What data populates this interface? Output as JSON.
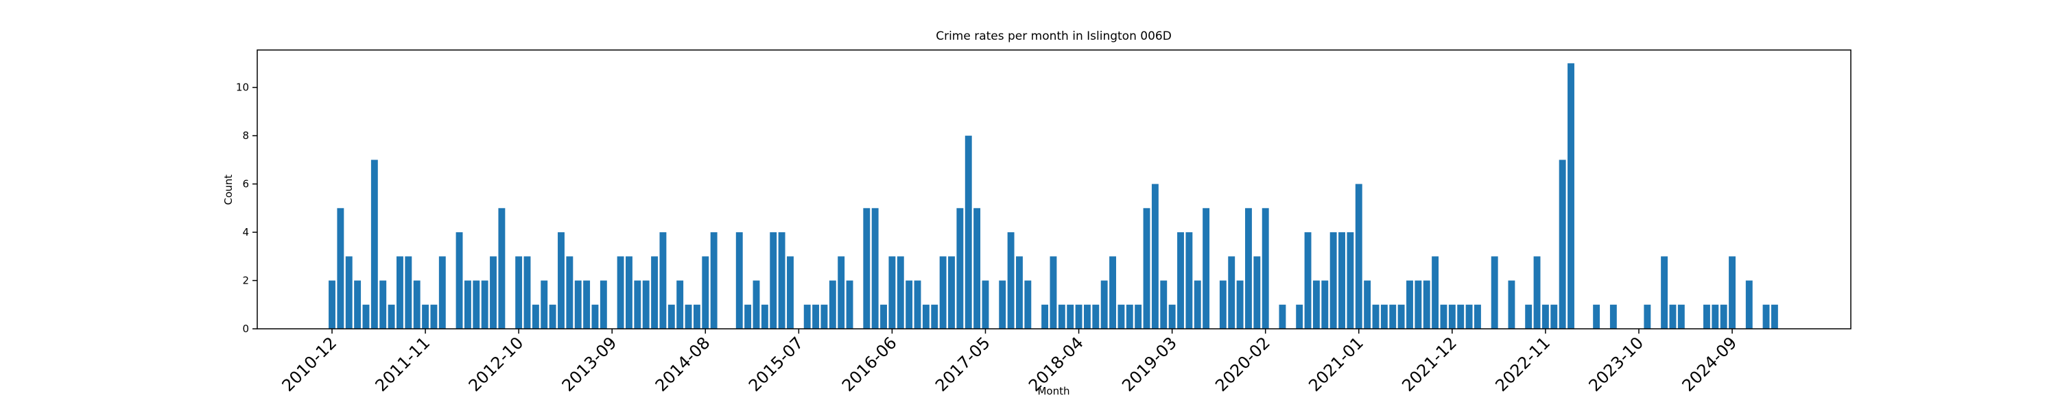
{
  "chart_data": {
    "type": "bar",
    "title": "Crime rates per month in Islington 006D",
    "x_label": "Month",
    "y_label": "Count",
    "color": "#1f77b4",
    "categories": [
      "2010-12",
      null,
      null,
      null,
      null,
      null,
      null,
      null,
      null,
      null,
      null,
      "2011-11",
      null,
      null,
      null,
      null,
      null,
      null,
      null,
      null,
      null,
      null,
      "2012-10",
      null,
      null,
      null,
      null,
      null,
      null,
      null,
      null,
      null,
      null,
      "2013-09",
      null,
      null,
      null,
      null,
      null,
      null,
      null,
      null,
      null,
      null,
      "2014-08",
      null,
      null,
      null,
      null,
      null,
      null,
      null,
      null,
      null,
      null,
      "2015-07",
      null,
      null,
      null,
      null,
      null,
      null,
      null,
      null,
      null,
      null,
      "2016-06",
      null,
      null,
      null,
      null,
      null,
      null,
      null,
      null,
      null,
      null,
      "2017-05",
      null,
      null,
      null,
      null,
      null,
      null,
      null,
      null,
      null,
      null,
      "2018-04",
      null,
      null,
      null,
      null,
      null,
      null,
      null,
      null,
      null,
      null,
      "2019-03",
      null,
      null,
      null,
      null,
      null,
      null,
      null,
      null,
      null,
      null,
      "2020-02",
      null,
      null,
      null,
      null,
      null,
      null,
      null,
      null,
      null,
      null,
      "2021-01",
      null,
      null,
      null,
      null,
      null,
      null,
      null,
      null,
      null,
      null,
      "2021-12",
      null,
      null,
      null,
      null,
      null,
      null,
      null,
      null,
      null,
      null,
      "2022-11",
      null,
      null,
      null,
      null,
      null,
      null,
      null,
      null,
      null,
      null,
      "2023-10",
      null,
      null,
      null,
      null,
      null,
      null,
      null,
      null,
      null,
      null,
      "2024-09",
      null,
      null,
      null,
      null,
      null
    ],
    "values": [
      2,
      5,
      3,
      2,
      1,
      7,
      2,
      1,
      3,
      3,
      2,
      1,
      1,
      3,
      0,
      4,
      2,
      2,
      2,
      3,
      5,
      0,
      3,
      3,
      1,
      2,
      1,
      4,
      3,
      2,
      2,
      1,
      2,
      0,
      3,
      3,
      2,
      2,
      3,
      4,
      1,
      2,
      1,
      1,
      3,
      4,
      0,
      0,
      4,
      1,
      2,
      1,
      4,
      4,
      3,
      0,
      1,
      1,
      1,
      2,
      3,
      2,
      0,
      5,
      5,
      1,
      3,
      3,
      2,
      2,
      1,
      1,
      3,
      3,
      5,
      8,
      5,
      2,
      0,
      2,
      4,
      3,
      2,
      0,
      1,
      3,
      1,
      1,
      1,
      1,
      1,
      2,
      3,
      1,
      1,
      1,
      5,
      6,
      2,
      1,
      4,
      4,
      2,
      5,
      0,
      2,
      3,
      2,
      5,
      3,
      5,
      0,
      1,
      0,
      1,
      4,
      2,
      2,
      4,
      4,
      4,
      6,
      2,
      1,
      1,
      1,
      1,
      2,
      2,
      2,
      3,
      1,
      1,
      1,
      1,
      1,
      0,
      3,
      0,
      2,
      0,
      1,
      3,
      1,
      1,
      7,
      11,
      0,
      0,
      1,
      0,
      1,
      0,
      0,
      0,
      1,
      0,
      3,
      1,
      1,
      0,
      0,
      1,
      1,
      1,
      3,
      0,
      2,
      0,
      1,
      1
    ],
    "ylim": [
      0,
      11.55
    ],
    "yticks": [
      0,
      2,
      4,
      6,
      8,
      10
    ],
    "grid": false
  }
}
